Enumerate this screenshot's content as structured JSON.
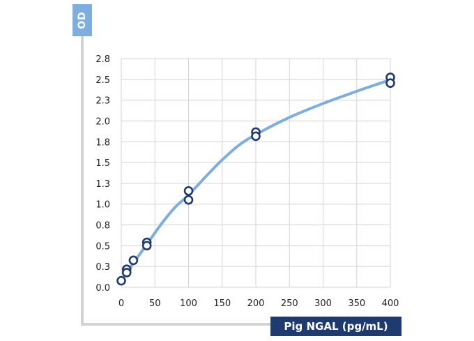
{
  "chart_data": {
    "type": "scatter",
    "title": "",
    "xlabel": "Pig NGAL (pg/mL)",
    "ylabel": "OD",
    "xlim": [
      0,
      400
    ],
    "ylim": [
      0,
      2.8
    ],
    "x_ticks": [
      "0",
      "50",
      "100",
      "150",
      "200",
      "250",
      "300",
      "350",
      "400"
    ],
    "y_ticks": [
      "0.0",
      "0.3",
      "0.5",
      "0.8",
      "1.0",
      "1.3",
      "1.5",
      "1.8",
      "2.0",
      "2.3",
      "2.5",
      "2.8"
    ],
    "grid": true,
    "points": [
      {
        "x": 0,
        "y": 0.08
      },
      {
        "x": 8,
        "y": 0.22
      },
      {
        "x": 8,
        "y": 0.18
      },
      {
        "x": 18,
        "y": 0.33
      },
      {
        "x": 38,
        "y": 0.55
      },
      {
        "x": 38,
        "y": 0.51
      },
      {
        "x": 100,
        "y": 1.18
      },
      {
        "x": 100,
        "y": 1.07
      },
      {
        "x": 200,
        "y": 1.9
      },
      {
        "x": 200,
        "y": 1.85
      },
      {
        "x": 400,
        "y": 2.57
      },
      {
        "x": 400,
        "y": 2.5
      }
    ],
    "fit_curve": {
      "x": [
        0,
        10,
        20,
        40,
        60,
        80,
        100,
        125,
        150,
        175,
        200,
        250,
        300,
        350,
        400
      ],
      "y": [
        0.1,
        0.2,
        0.32,
        0.55,
        0.78,
        0.98,
        1.13,
        1.35,
        1.56,
        1.74,
        1.87,
        2.08,
        2.25,
        2.4,
        2.54
      ]
    },
    "colors": {
      "curve": "#7eaede",
      "point_stroke": "#1e3a6e",
      "grid": "#d3d3d3",
      "axis_frame": "#d3d3d3"
    }
  }
}
